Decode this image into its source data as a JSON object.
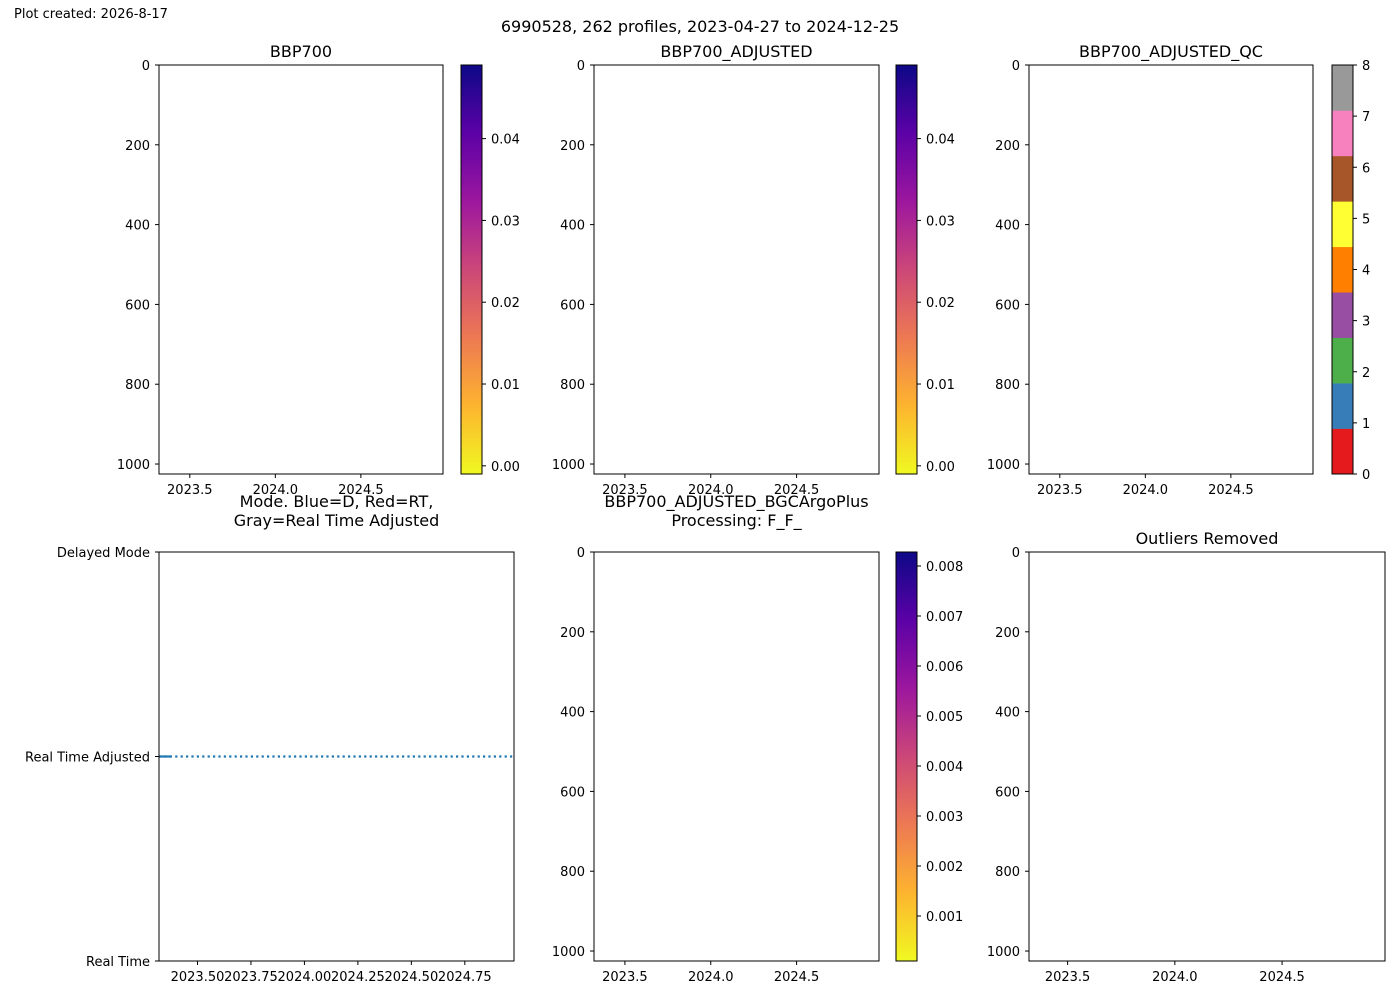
{
  "figure": {
    "created_label": "Plot created: 2026-8-17",
    "title": "6990528, 262 profiles, 2023-04-27 to 2024-12-25"
  },
  "colors": {
    "axes": "#000000",
    "mode_line": "#1f77b4",
    "plasma_r": [
      "#f0f921",
      "#fdb42f",
      "#ed7953",
      "#cc4778",
      "#9c179e",
      "#5c01a6",
      "#0d0887"
    ],
    "qc_classes": [
      "#e41a1c",
      "#377eb8",
      "#4daf4a",
      "#984ea3",
      "#ff7f00",
      "#ffff33",
      "#a65628",
      "#f781bf",
      "#999999"
    ]
  },
  "chart_data": [
    {
      "type": "heatmap",
      "title": "BBP700",
      "xlim": [
        2023.32,
        2024.98
      ],
      "xticks": [
        2023.5,
        2024.0,
        2024.5
      ],
      "xtick_labels": [
        "2023.5",
        "2024.0",
        "2024.5"
      ],
      "ylim": [
        1025,
        0
      ],
      "yticks": [
        0,
        200,
        400,
        600,
        800,
        1000
      ],
      "ytick_labels": [
        "0",
        "200",
        "400",
        "600",
        "800",
        "1000"
      ],
      "colorbar": {
        "range": [
          -0.001,
          0.049
        ],
        "ticks": [
          0.0,
          0.01,
          0.02,
          0.03,
          0.04
        ],
        "tick_labels": [
          "0.00",
          "0.01",
          "0.02",
          "0.03",
          "0.04"
        ],
        "cmap": "plasma_r"
      }
    },
    {
      "type": "heatmap",
      "title": "BBP700_ADJUSTED",
      "xlim": [
        2023.32,
        2024.98
      ],
      "xticks": [
        2023.5,
        2024.0,
        2024.5
      ],
      "xtick_labels": [
        "2023.5",
        "2024.0",
        "2024.5"
      ],
      "ylim": [
        1025,
        0
      ],
      "yticks": [
        0,
        200,
        400,
        600,
        800,
        1000
      ],
      "ytick_labels": [
        "0",
        "200",
        "400",
        "600",
        "800",
        "1000"
      ],
      "colorbar": {
        "range": [
          -0.001,
          0.049
        ],
        "ticks": [
          0.0,
          0.01,
          0.02,
          0.03,
          0.04
        ],
        "tick_labels": [
          "0.00",
          "0.01",
          "0.02",
          "0.03",
          "0.04"
        ],
        "cmap": "plasma_r"
      }
    },
    {
      "type": "heatmap",
      "title": "BBP700_ADJUSTED_QC",
      "xlim": [
        2023.32,
        2024.98
      ],
      "xticks": [
        2023.5,
        2024.0,
        2024.5
      ],
      "xtick_labels": [
        "2023.5",
        "2024.0",
        "2024.5"
      ],
      "ylim": [
        1025,
        0
      ],
      "yticks": [
        0,
        200,
        400,
        600,
        800,
        1000
      ],
      "ytick_labels": [
        "0",
        "200",
        "400",
        "600",
        "800",
        "1000"
      ],
      "colorbar": {
        "range": [
          0,
          8
        ],
        "ticks": [
          0,
          1,
          2,
          3,
          4,
          5,
          6,
          7,
          8
        ],
        "tick_labels": [
          "0",
          "1",
          "2",
          "3",
          "4",
          "5",
          "6",
          "7",
          "8"
        ],
        "cmap": "qc_classes"
      }
    },
    {
      "type": "line",
      "title_lines": [
        "Mode. Blue=D, Red=RT,",
        "Gray=Real Time Adjusted"
      ],
      "xlim": [
        2023.32,
        2024.98
      ],
      "xticks": [
        2023.5,
        2023.75,
        2024.0,
        2024.25,
        2024.5,
        2024.75
      ],
      "xtick_labels": [
        "2023.50",
        "2023.75",
        "2024.00",
        "2024.25",
        "2024.50",
        "2024.75"
      ],
      "ylim": [
        0,
        2
      ],
      "yticks": [
        2,
        1,
        0
      ],
      "ytick_labels": [
        "Delayed Mode",
        "Real Time Adjusted",
        "Real Time"
      ],
      "series": [
        {
          "x": [
            2023.32,
            2024.98
          ],
          "y": [
            1,
            1
          ],
          "style": "dotted"
        }
      ]
    },
    {
      "type": "heatmap",
      "title_lines": [
        "BBP700_ADJUSTED_BGCArgoPlus",
        "Processing: F_F_"
      ],
      "xlim": [
        2023.32,
        2024.98
      ],
      "xticks": [
        2023.5,
        2024.0,
        2024.5
      ],
      "xtick_labels": [
        "2023.5",
        "2024.0",
        "2024.5"
      ],
      "ylim": [
        1025,
        0
      ],
      "yticks": [
        0,
        200,
        400,
        600,
        800,
        1000
      ],
      "ytick_labels": [
        "0",
        "200",
        "400",
        "600",
        "800",
        "1000"
      ],
      "colorbar": {
        "range": [
          0.0001,
          0.00828
        ],
        "ticks": [
          0.001,
          0.002,
          0.003,
          0.004,
          0.005,
          0.006,
          0.007,
          0.008
        ],
        "tick_labels": [
          "0.001",
          "0.002",
          "0.003",
          "0.004",
          "0.005",
          "0.006",
          "0.007",
          "0.008"
        ],
        "cmap": "plasma_r"
      }
    },
    {
      "type": "heatmap",
      "title": "Outliers Removed",
      "xlim": [
        2023.32,
        2024.98
      ],
      "xticks": [
        2023.5,
        2024.0,
        2024.5
      ],
      "xtick_labels": [
        "2023.5",
        "2024.0",
        "2024.5"
      ],
      "ylim": [
        1025,
        0
      ],
      "yticks": [
        0,
        200,
        400,
        600,
        800,
        1000
      ],
      "ytick_labels": [
        "0",
        "200",
        "400",
        "600",
        "800",
        "1000"
      ]
    }
  ]
}
